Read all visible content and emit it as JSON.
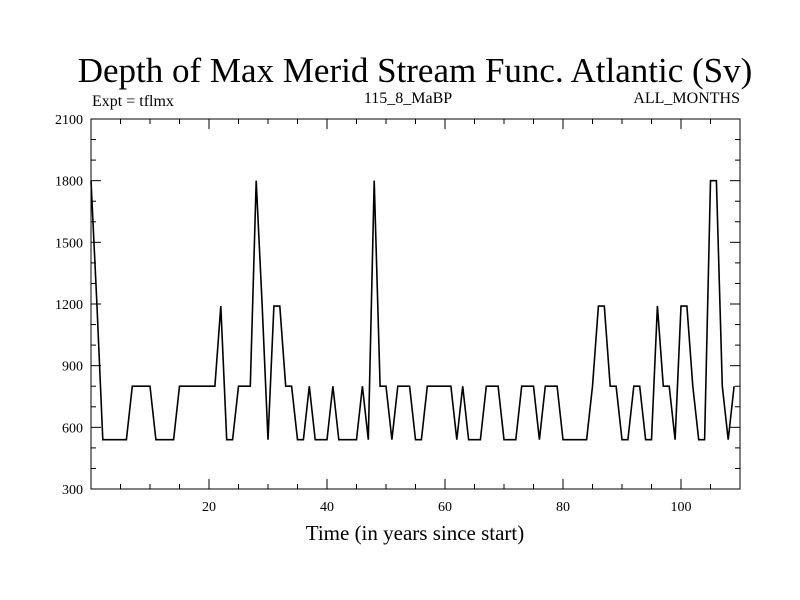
{
  "chart_data": {
    "type": "line",
    "title": "Depth of Max Merid Stream Func. Atlantic (Sv)",
    "subtitle_left": "Expt = tflmx",
    "subtitle_center": "115_8_MaBP",
    "subtitle_right": "ALL_MONTHS",
    "xlabel": "Time (in years since start)",
    "ylabel": "",
    "xlim": [
      0,
      110
    ],
    "ylim": [
      300,
      2100
    ],
    "x_ticks": [
      20,
      40,
      60,
      80,
      100
    ],
    "x_tick_labels": [
      "20",
      "40",
      "60",
      "80",
      "100"
    ],
    "y_ticks": [
      300,
      600,
      900,
      1200,
      1500,
      1800,
      2100
    ],
    "y_tick_labels": [
      "300",
      "600",
      "900",
      "1200",
      "1500",
      "1800",
      "2100"
    ],
    "grid": false,
    "line_color": "#000000",
    "series": [
      {
        "name": "depth",
        "values": [
          [
            0,
            1800
          ],
          [
            1,
            1200
          ],
          [
            2,
            540
          ],
          [
            3,
            540
          ],
          [
            4,
            540
          ],
          [
            5,
            540
          ],
          [
            6,
            540
          ],
          [
            7,
            800
          ],
          [
            8,
            800
          ],
          [
            9,
            800
          ],
          [
            10,
            800
          ],
          [
            11,
            540
          ],
          [
            12,
            540
          ],
          [
            13,
            540
          ],
          [
            14,
            540
          ],
          [
            15,
            800
          ],
          [
            16,
            800
          ],
          [
            17,
            800
          ],
          [
            18,
            800
          ],
          [
            19,
            800
          ],
          [
            20,
            800
          ],
          [
            21,
            800
          ],
          [
            22,
            1190
          ],
          [
            23,
            540
          ],
          [
            24,
            540
          ],
          [
            25,
            800
          ],
          [
            26,
            800
          ],
          [
            27,
            800
          ],
          [
            28,
            1800
          ],
          [
            29,
            1200
          ],
          [
            30,
            540
          ],
          [
            31,
            1190
          ],
          [
            32,
            1190
          ],
          [
            33,
            800
          ],
          [
            34,
            800
          ],
          [
            35,
            540
          ],
          [
            36,
            540
          ],
          [
            37,
            800
          ],
          [
            38,
            540
          ],
          [
            39,
            540
          ],
          [
            40,
            540
          ],
          [
            41,
            800
          ],
          [
            42,
            540
          ],
          [
            43,
            540
          ],
          [
            44,
            540
          ],
          [
            45,
            540
          ],
          [
            46,
            800
          ],
          [
            47,
            540
          ],
          [
            48,
            1800
          ],
          [
            49,
            800
          ],
          [
            50,
            800
          ],
          [
            51,
            540
          ],
          [
            52,
            800
          ],
          [
            53,
            800
          ],
          [
            54,
            800
          ],
          [
            55,
            540
          ],
          [
            56,
            540
          ],
          [
            57,
            800
          ],
          [
            58,
            800
          ],
          [
            59,
            800
          ],
          [
            60,
            800
          ],
          [
            61,
            800
          ],
          [
            62,
            540
          ],
          [
            63,
            800
          ],
          [
            64,
            540
          ],
          [
            65,
            540
          ],
          [
            66,
            540
          ],
          [
            67,
            800
          ],
          [
            68,
            800
          ],
          [
            69,
            800
          ],
          [
            70,
            540
          ],
          [
            71,
            540
          ],
          [
            72,
            540
          ],
          [
            73,
            800
          ],
          [
            74,
            800
          ],
          [
            75,
            800
          ],
          [
            76,
            540
          ],
          [
            77,
            800
          ],
          [
            78,
            800
          ],
          [
            79,
            800
          ],
          [
            80,
            540
          ],
          [
            81,
            540
          ],
          [
            82,
            540
          ],
          [
            83,
            540
          ],
          [
            84,
            540
          ],
          [
            85,
            800
          ],
          [
            86,
            1190
          ],
          [
            87,
            1190
          ],
          [
            88,
            800
          ],
          [
            89,
            800
          ],
          [
            90,
            540
          ],
          [
            91,
            540
          ],
          [
            92,
            800
          ],
          [
            93,
            800
          ],
          [
            94,
            540
          ],
          [
            95,
            540
          ],
          [
            96,
            1190
          ],
          [
            97,
            800
          ],
          [
            98,
            800
          ],
          [
            99,
            540
          ],
          [
            100,
            1190
          ],
          [
            101,
            1190
          ],
          [
            102,
            800
          ],
          [
            103,
            540
          ],
          [
            104,
            540
          ],
          [
            105,
            1800
          ],
          [
            106,
            1800
          ],
          [
            107,
            800
          ],
          [
            108,
            540
          ],
          [
            109,
            800
          ]
        ]
      }
    ]
  }
}
